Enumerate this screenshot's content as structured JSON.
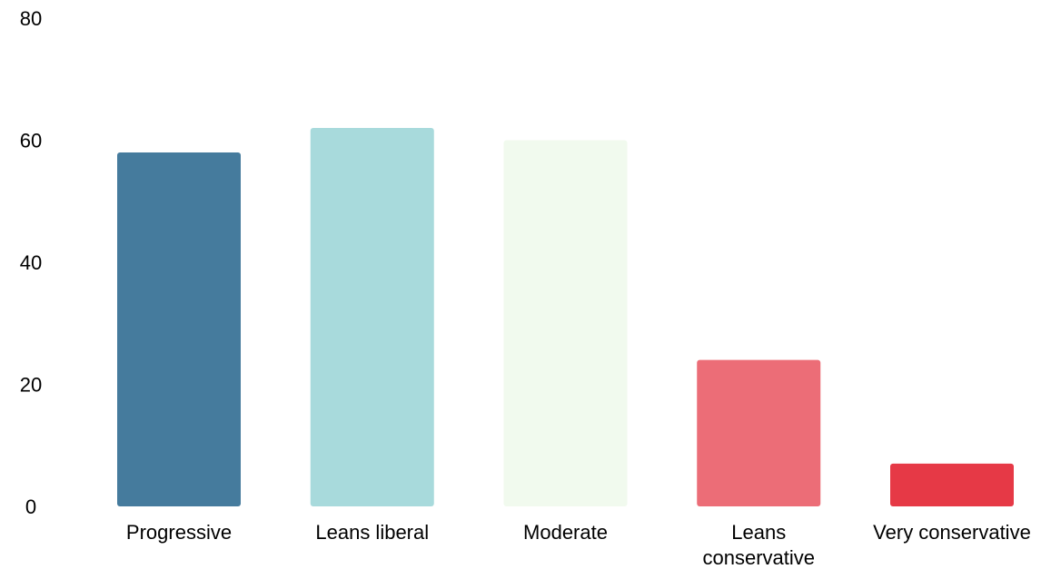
{
  "chart_data": {
    "type": "bar",
    "categories": [
      "Progressive",
      "Leans liberal",
      "Moderate",
      "Leans conservative",
      "Very conservative"
    ],
    "category_label_lines": [
      [
        "Progressive"
      ],
      [
        "Leans liberal"
      ],
      [
        "Moderate"
      ],
      [
        "Leans",
        "conservative"
      ],
      [
        "Very conservative"
      ]
    ],
    "values": [
      58,
      62,
      60,
      24,
      7
    ],
    "colors": [
      "#457b9d",
      "#a8dadc",
      "#f1faee",
      "#ec6d77",
      "#e63946"
    ],
    "title": "",
    "xlabel": "",
    "ylabel": "",
    "ylim": [
      0,
      80
    ],
    "yticks": [
      0,
      20,
      40,
      60,
      80
    ],
    "grid": false,
    "legend": "none"
  }
}
